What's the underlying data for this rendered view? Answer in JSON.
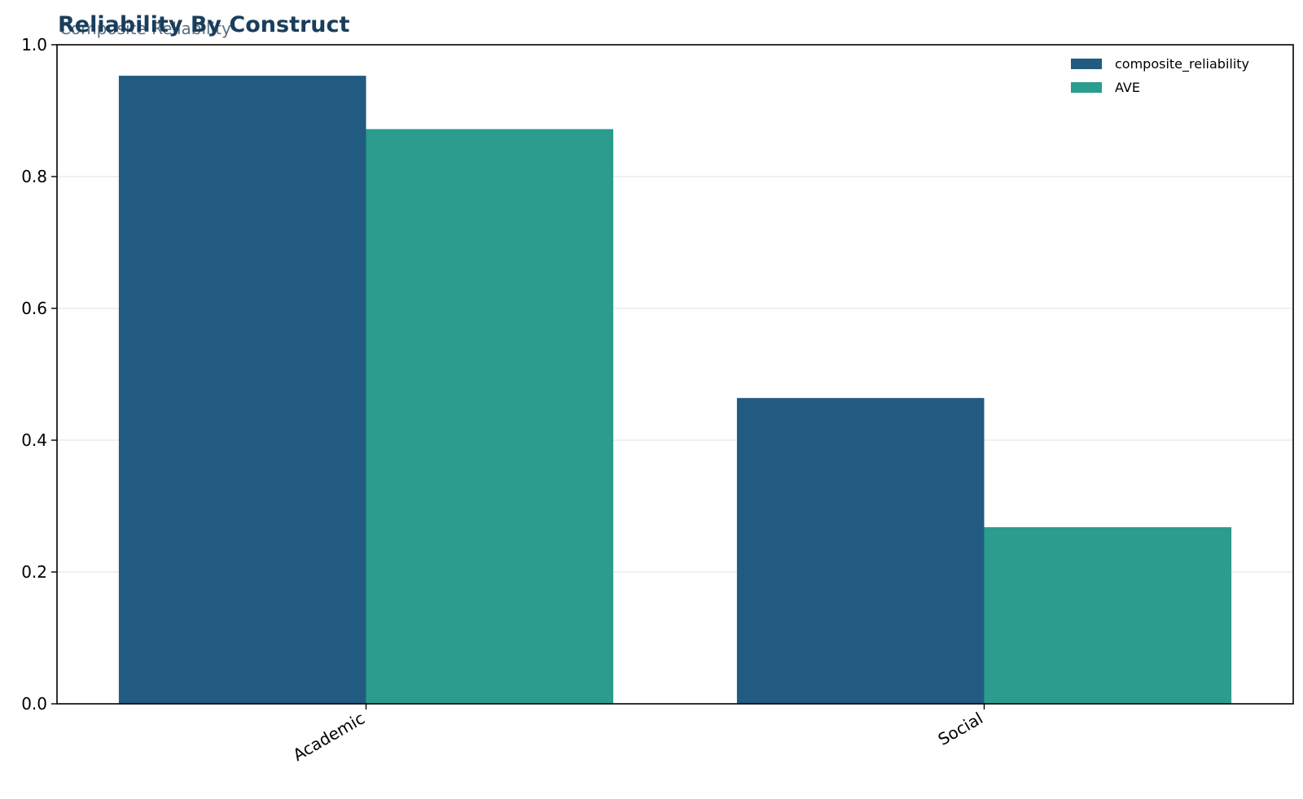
{
  "chart_data": {
    "type": "bar",
    "title": "Reliability By Construct",
    "subtitle": "Composite Reliability",
    "xlabel": "",
    "ylabel": "",
    "categories": [
      "Academic",
      "Social"
    ],
    "series": [
      {
        "name": "composite_reliability",
        "values": [
          0.953,
          0.464
        ],
        "color": "#215b82"
      },
      {
        "name": "AVE",
        "values": [
          0.872,
          0.268
        ],
        "color": "#2b9c8d"
      }
    ],
    "ylim": [
      0,
      1.0
    ],
    "yticks": [
      0.0,
      0.2,
      0.4,
      0.6,
      0.8,
      1.0
    ],
    "ytick_labels": [
      "0.0",
      "0.2",
      "0.4",
      "0.6",
      "0.8",
      "1.0"
    ],
    "grid": "horizontal",
    "legend_position": "top-right",
    "colors": {
      "title": "#1a3d5c",
      "subtitle": "#5a6e80",
      "grid": "#ececec",
      "axis": "#000000"
    }
  }
}
